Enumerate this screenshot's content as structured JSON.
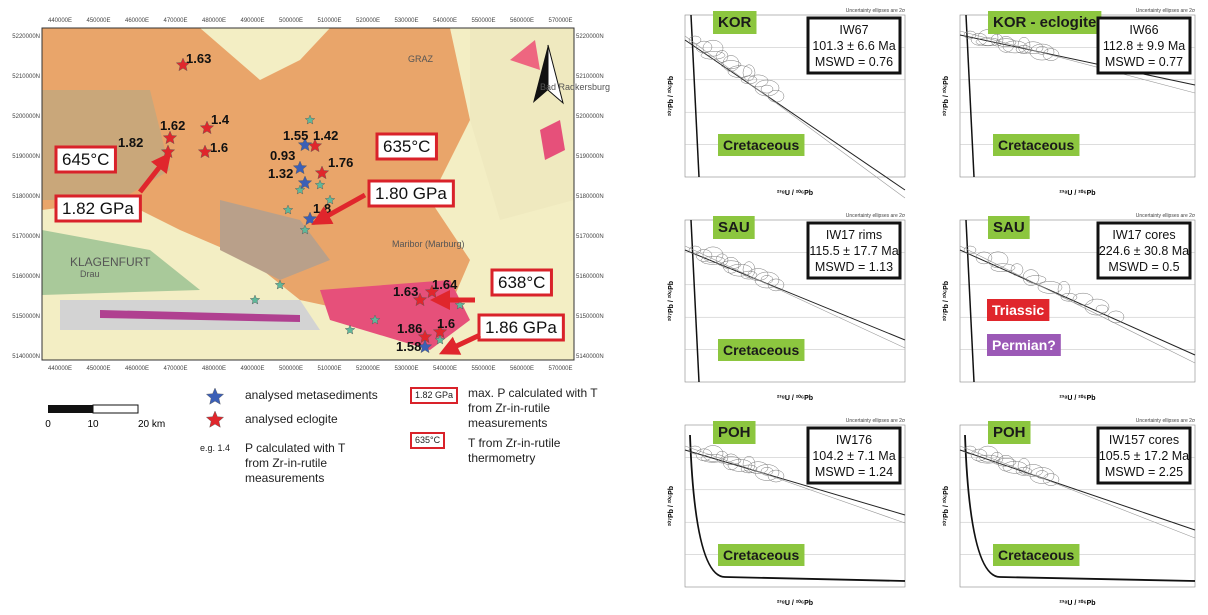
{
  "map": {
    "x_coords": [
      "440000E",
      "450000E",
      "460000E",
      "470000E",
      "480000E",
      "490000E",
      "500000E",
      "510000E",
      "520000E",
      "530000E",
      "540000E",
      "550000E",
      "560000E",
      "570000E"
    ],
    "y_coords": [
      "5220000N",
      "5210000N",
      "5200000N",
      "5190000N",
      "5180000N",
      "5170000N",
      "5160000N",
      "5150000N",
      "5140000N"
    ],
    "places": [
      "GRAZ",
      "KLAGENFURT",
      "Maribor (Marburg)",
      "Drau",
      "Bad Radkersburg"
    ],
    "stars": [
      "1.63",
      "1.62",
      "1.4",
      "1.82",
      "1.6",
      "1.55",
      "1.42",
      "0.93",
      "1.32",
      "1.76",
      "1.8",
      "1.63",
      "1.64",
      "1.86",
      "1.6",
      "1.58"
    ],
    "temperatures": [
      "645°C",
      "635°C",
      "638°C"
    ],
    "pressures": [
      "1.82 GPa",
      "1.80 GPa",
      "1.86 GPa"
    ]
  },
  "legend": {
    "scale_ticks": [
      "0",
      "10",
      "20 km"
    ],
    "metasediments": "analysed metasediments",
    "eclogite": "analysed eclogite",
    "example": "e.g. 1.4",
    "p_text": "P calculated with T from Zr-in-rutile measurements",
    "box1": "1.82 GPa",
    "box1_text": "max. P calculated with T from Zr-in-rutile measurements",
    "box2": "635°C",
    "box2_text": "T from Zr-in-rutile thermometry"
  },
  "plots": {
    "uncertainty_note": "Uncertainty ellipses are 2σ",
    "y_label": "²⁰⁷Pb / ²⁰⁶Pb",
    "x_label": "²³⁸U / ²⁰⁶Pb",
    "panels": [
      {
        "tag": "KOR",
        "sample": [
          "IW67",
          "101.3 ± 6.6 Ma",
          "MSWD = 0.76"
        ],
        "periods": [
          "Cretaceous"
        ]
      },
      {
        "tag": "KOR - eclogite",
        "sample": [
          "IW66",
          "112.8 ± 9.9 Ma",
          "MSWD = 0.77"
        ],
        "periods": [
          "Cretaceous"
        ]
      },
      {
        "tag": "SAU",
        "sample": [
          "IW17 rims",
          "115.5 ± 17.7 Ma",
          "MSWD = 1.13"
        ],
        "periods": [
          "Cretaceous"
        ]
      },
      {
        "tag": "SAU",
        "sample": [
          "IW17 cores",
          "224.6 ± 30.8 Ma",
          "MSWD = 0.5"
        ],
        "periods": [
          "Triassic",
          "Permian?"
        ]
      },
      {
        "tag": "POH",
        "sample": [
          "IW176",
          "104.2 ± 7.1 Ma",
          "MSWD = 1.24"
        ],
        "periods": [
          "Cretaceous"
        ]
      },
      {
        "tag": "POH",
        "sample": [
          "IW157 cores",
          "105.5 ± 17.2 Ma",
          "MSWD = 2.25"
        ],
        "periods": [
          "Cretaceous"
        ]
      }
    ]
  }
}
